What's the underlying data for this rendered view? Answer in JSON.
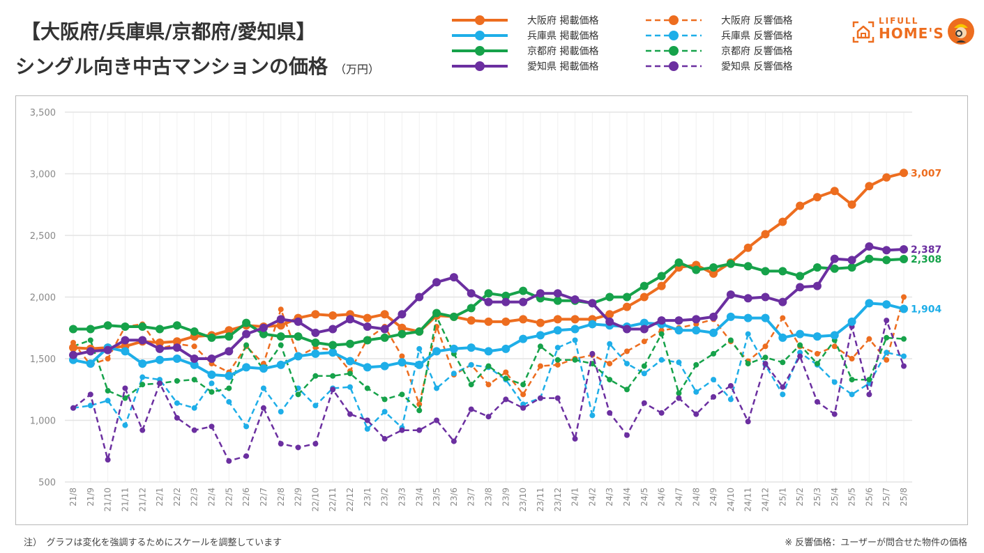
{
  "header": {
    "title_line1": "【大阪府/兵庫県/京都府/愛知県】",
    "title_line2": "シングル向き中古マンションの価格",
    "unit": "（万円）"
  },
  "logo": {
    "line1": "LIFULL",
    "line2": "HOME'S",
    "brand_color": "#ed6d1f"
  },
  "notes": {
    "left": "注）　グラフは変化を強調するためにスケールを調整しています",
    "right": "※ 反響価格：ユーザーが問合せた物件の価格"
  },
  "chart_data": {
    "type": "line",
    "title": "【大阪府/兵庫県/京都府/愛知県】シングル向き中古マンションの価格（万円）",
    "xlabel": "",
    "ylabel": "万円",
    "ylim": [
      500,
      3500
    ],
    "yticks": [
      500,
      1000,
      1500,
      2000,
      2500,
      3000,
      3500
    ],
    "ytick_labels": [
      "500",
      "1,000",
      "1,500",
      "2,000",
      "2,500",
      "3,000",
      "3,500"
    ],
    "grid": true,
    "legend_position": "top-right",
    "x": [
      "21/8",
      "21/9",
      "21/10",
      "21/11",
      "21/12",
      "22/1",
      "22/2",
      "22/3",
      "22/4",
      "22/5",
      "22/6",
      "22/7",
      "22/8",
      "22/9",
      "22/10",
      "22/11",
      "22/12",
      "23/1",
      "23/2",
      "23/3",
      "23/4",
      "23/5",
      "23/6",
      "23/7",
      "23/8",
      "23/9",
      "23/10",
      "23/11",
      "23/12",
      "24/1",
      "24/2",
      "24/3",
      "24/4",
      "24/5",
      "24/6",
      "24/7",
      "24/8",
      "24/9",
      "24/10",
      "24/11",
      "24/12",
      "25/1",
      "25/2",
      "25/3",
      "25/4",
      "25/5",
      "25/6",
      "25/7",
      "25/8"
    ],
    "series": [
      {
        "name": "大阪府 掲載価格",
        "color": "#ed6d1f",
        "dashed": false,
        "end_label": "3,007",
        "values": [
          1590,
          1580,
          1590,
          1600,
          1640,
          1630,
          1640,
          1680,
          1690,
          1730,
          1770,
          1760,
          1770,
          1830,
          1860,
          1850,
          1860,
          1830,
          1860,
          1750,
          1720,
          1850,
          1840,
          1810,
          1800,
          1800,
          1820,
          1790,
          1820,
          1820,
          1820,
          1860,
          1920,
          2000,
          2090,
          2240,
          2260,
          2190,
          2280,
          2400,
          2510,
          2610,
          2740,
          2810,
          2860,
          2750,
          2900,
          2970,
          3007
        ]
      },
      {
        "name": "兵庫県 掲載価格",
        "color": "#1eaee8",
        "dashed": false,
        "end_label": "1,904",
        "values": [
          1490,
          1460,
          1590,
          1560,
          1460,
          1490,
          1500,
          1450,
          1370,
          1360,
          1430,
          1420,
          1450,
          1520,
          1540,
          1550,
          1480,
          1430,
          1440,
          1470,
          1450,
          1560,
          1580,
          1590,
          1560,
          1580,
          1660,
          1690,
          1730,
          1740,
          1780,
          1770,
          1760,
          1790,
          1780,
          1730,
          1730,
          1710,
          1840,
          1830,
          1830,
          1670,
          1700,
          1680,
          1690,
          1800,
          1950,
          1940,
          1904
        ]
      },
      {
        "name": "京都府 掲載価格",
        "color": "#16a24a",
        "dashed": false,
        "end_label": "2,308",
        "values": [
          1740,
          1740,
          1770,
          1760,
          1760,
          1740,
          1770,
          1720,
          1670,
          1680,
          1790,
          1700,
          1680,
          1680,
          1630,
          1610,
          1620,
          1650,
          1670,
          1700,
          1720,
          1870,
          1840,
          1910,
          2030,
          2010,
          2050,
          1990,
          1970,
          1970,
          1950,
          2000,
          2000,
          2090,
          2170,
          2280,
          2220,
          2240,
          2270,
          2250,
          2210,
          2210,
          2170,
          2240,
          2230,
          2240,
          2310,
          2300,
          2308
        ]
      },
      {
        "name": "愛知県 掲載価格",
        "color": "#6b2fa0",
        "dashed": false,
        "end_label": "2,387",
        "values": [
          1530,
          1560,
          1570,
          1650,
          1650,
          1580,
          1590,
          1500,
          1500,
          1560,
          1700,
          1750,
          1820,
          1800,
          1710,
          1740,
          1820,
          1760,
          1740,
          1860,
          2000,
          2120,
          2160,
          2030,
          1960,
          1960,
          1960,
          2030,
          2030,
          1980,
          1950,
          1800,
          1740,
          1740,
          1810,
          1810,
          1820,
          1840,
          2020,
          1990,
          2000,
          1960,
          2080,
          2090,
          2310,
          2300,
          2410,
          2380,
          2387
        ]
      },
      {
        "name": "大阪府 反響価格",
        "color": "#ed6d1f",
        "dashed": true,
        "end_label": "",
        "values": [
          1630,
          1450,
          1500,
          1760,
          1780,
          1580,
          1620,
          1600,
          1460,
          1390,
          1600,
          1460,
          1900,
          1520,
          1590,
          1570,
          1400,
          1660,
          1760,
          1520,
          1130,
          1760,
          1370,
          1450,
          1290,
          1390,
          1210,
          1440,
          1450,
          1500,
          1530,
          1460,
          1560,
          1640,
          1730,
          1750,
          1780,
          1820,
          1640,
          1480,
          1600,
          1830,
          1600,
          1540,
          1600,
          1500,
          1660,
          1490,
          2000
        ]
      },
      {
        "name": "兵庫県 反響価格",
        "color": "#1eaee8",
        "dashed": true,
        "end_label": "",
        "values": [
          1100,
          1120,
          1160,
          960,
          1350,
          1330,
          1140,
          1100,
          1300,
          1150,
          950,
          1260,
          1070,
          1260,
          1120,
          1260,
          1270,
          930,
          1070,
          940,
          1580,
          1260,
          1380,
          1450,
          1430,
          1330,
          1130,
          1180,
          1590,
          1650,
          1040,
          1620,
          1460,
          1380,
          1490,
          1470,
          1230,
          1330,
          1170,
          1700,
          1450,
          1210,
          1550,
          1450,
          1310,
          1210,
          1300,
          1550,
          1520
        ]
      },
      {
        "name": "京都府 反響価格",
        "color": "#16a24a",
        "dashed": true,
        "end_label": "",
        "values": [
          1600,
          1650,
          1240,
          1180,
          1290,
          1300,
          1320,
          1330,
          1230,
          1260,
          1610,
          1410,
          1610,
          1210,
          1360,
          1360,
          1380,
          1260,
          1170,
          1210,
          1080,
          1840,
          1540,
          1290,
          1440,
          1340,
          1290,
          1600,
          1490,
          1490,
          1460,
          1330,
          1250,
          1440,
          1700,
          1220,
          1450,
          1540,
          1650,
          1460,
          1510,
          1470,
          1610,
          1460,
          1650,
          1330,
          1330,
          1670,
          1660
        ]
      },
      {
        "name": "愛知県 反響価格",
        "color": "#6b2fa0",
        "dashed": true,
        "end_label": "",
        "values": [
          1100,
          1210,
          680,
          1260,
          920,
          1300,
          1020,
          920,
          950,
          670,
          710,
          1100,
          810,
          780,
          810,
          1250,
          1050,
          1000,
          850,
          920,
          920,
          1000,
          830,
          1090,
          1030,
          1170,
          1100,
          1180,
          1180,
          850,
          1540,
          1060,
          880,
          1140,
          1060,
          1180,
          1050,
          1190,
          1280,
          990,
          1460,
          1270,
          1520,
          1150,
          1050,
          1760,
          1210,
          1810,
          1440
        ]
      }
    ]
  }
}
